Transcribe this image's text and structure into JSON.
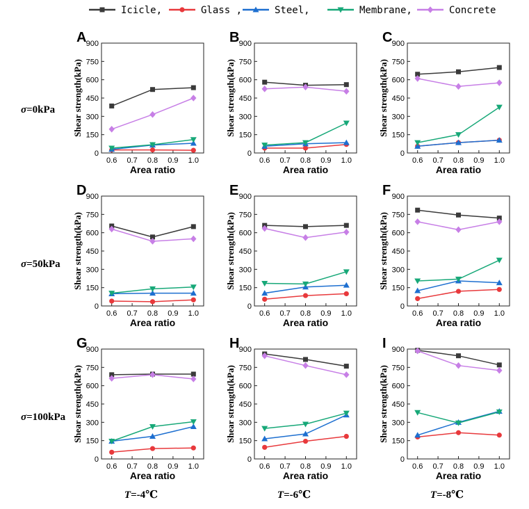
{
  "legend": {
    "items": [
      {
        "label": "Icicle,",
        "color": "#3a3a3a",
        "marker": "square"
      },
      {
        "label": "Glass ,",
        "color": "#e8393c",
        "marker": "circle"
      },
      {
        "label": "Steel,",
        "color": "#1d6fd0",
        "marker": "triangle-up"
      },
      {
        "label": "Membrane,",
        "color": "#17a878",
        "marker": "triangle-down"
      },
      {
        "label": "Concrete",
        "color": "#c77fe6",
        "marker": "diamond"
      }
    ]
  },
  "row_labels": [
    {
      "sym": "σ",
      "rest": "=0kPa"
    },
    {
      "sym": "σ",
      "rest": "=50kPa"
    },
    {
      "sym": "σ",
      "rest": "=100kPa"
    }
  ],
  "col_labels": [
    {
      "sym": "T",
      "rest": "=-4℃"
    },
    {
      "sym": "T",
      "rest": "=-6℃"
    },
    {
      "sym": "T",
      "rest": "=-8℃"
    }
  ],
  "chart_data": [
    {
      "type": "line",
      "panel": "A",
      "x": [
        0.6,
        0.8,
        1.0
      ],
      "xlabel": "Area ratio",
      "ylabel": "Shear strength(kPa)",
      "xlim": [
        0.55,
        1.05
      ],
      "ylim": [
        0,
        900
      ],
      "xticks": [
        "0.6",
        "0.7",
        "0.8",
        "0.9",
        "1.0"
      ],
      "yticks": [
        "0",
        "150",
        "300",
        "450",
        "600",
        "750",
        "900"
      ],
      "series": [
        {
          "name": "Icicle",
          "values": [
            385,
            520,
            535
          ]
        },
        {
          "name": "Glass",
          "values": [
            25,
            25,
            22
          ]
        },
        {
          "name": "Steel",
          "values": [
            30,
            65,
            80
          ]
        },
        {
          "name": "Membrane",
          "values": [
            40,
            68,
            110
          ]
        },
        {
          "name": "Concrete",
          "values": [
            195,
            315,
            450
          ]
        }
      ]
    },
    {
      "type": "line",
      "panel": "B",
      "x": [
        0.6,
        0.8,
        1.0
      ],
      "xlabel": "Area ratio",
      "ylabel": "Shear strength(kPa)",
      "xlim": [
        0.55,
        1.05
      ],
      "ylim": [
        0,
        900
      ],
      "xticks": [
        "0.6",
        "0.7",
        "0.8",
        "0.9",
        "1.0"
      ],
      "yticks": [
        "0",
        "150",
        "300",
        "450",
        "600",
        "750",
        "900"
      ],
      "series": [
        {
          "name": "Icicle",
          "values": [
            580,
            555,
            560
          ]
        },
        {
          "name": "Glass",
          "values": [
            40,
            40,
            70
          ]
        },
        {
          "name": "Steel",
          "values": [
            55,
            75,
            85
          ]
        },
        {
          "name": "Membrane",
          "values": [
            65,
            85,
            245
          ]
        },
        {
          "name": "Concrete",
          "values": [
            525,
            540,
            505
          ]
        }
      ]
    },
    {
      "type": "line",
      "panel": "C",
      "x": [
        0.6,
        0.8,
        1.0
      ],
      "xlabel": "Area ratio",
      "ylabel": "Shear strength(kPa)",
      "xlim": [
        0.55,
        1.05
      ],
      "ylim": [
        0,
        900
      ],
      "xticks": [
        "0.6",
        "0.7",
        "0.8",
        "0.9",
        "1.0"
      ],
      "yticks": [
        "0",
        "150",
        "300",
        "450",
        "600",
        "750",
        "900"
      ],
      "series": [
        {
          "name": "Icicle",
          "values": [
            645,
            665,
            700
          ]
        },
        {
          "name": "Glass",
          "values": [
            55,
            85,
            105
          ]
        },
        {
          "name": "Steel",
          "values": [
            55,
            85,
            105
          ]
        },
        {
          "name": "Membrane",
          "values": [
            85,
            150,
            375
          ]
        },
        {
          "name": "Concrete",
          "values": [
            610,
            545,
            575
          ]
        }
      ]
    },
    {
      "type": "line",
      "panel": "D",
      "x": [
        0.6,
        0.8,
        1.0
      ],
      "xlabel": "Area ratio",
      "ylabel": "Shear strength(kPa)",
      "xlim": [
        0.55,
        1.05
      ],
      "ylim": [
        0,
        900
      ],
      "xticks": [
        "0.6",
        "0.7",
        "0.8",
        "0.9",
        "1.0"
      ],
      "yticks": [
        "0",
        "150",
        "300",
        "450",
        "600",
        "750",
        "900"
      ],
      "series": [
        {
          "name": "Icicle",
          "values": [
            655,
            565,
            650
          ]
        },
        {
          "name": "Glass",
          "values": [
            40,
            35,
            50
          ]
        },
        {
          "name": "Steel",
          "values": [
            100,
            105,
            105
          ]
        },
        {
          "name": "Membrane",
          "values": [
            105,
            140,
            155
          ]
        },
        {
          "name": "Concrete",
          "values": [
            630,
            530,
            550
          ]
        }
      ]
    },
    {
      "type": "line",
      "panel": "E",
      "x": [
        0.6,
        0.8,
        1.0
      ],
      "xlabel": "Area ratio",
      "ylabel": "Shear strength(kPa)",
      "xlim": [
        0.55,
        1.05
      ],
      "ylim": [
        0,
        900
      ],
      "xticks": [
        "0.6",
        "0.7",
        "0.8",
        "0.9",
        "1.0"
      ],
      "yticks": [
        "0",
        "150",
        "300",
        "450",
        "600",
        "750",
        "900"
      ],
      "series": [
        {
          "name": "Icicle",
          "values": [
            660,
            650,
            660
          ]
        },
        {
          "name": "Glass",
          "values": [
            55,
            85,
            100
          ]
        },
        {
          "name": "Steel",
          "values": [
            105,
            155,
            170
          ]
        },
        {
          "name": "Membrane",
          "values": [
            185,
            180,
            280
          ]
        },
        {
          "name": "Concrete",
          "values": [
            635,
            560,
            605
          ]
        }
      ]
    },
    {
      "type": "line",
      "panel": "F",
      "x": [
        0.6,
        0.8,
        1.0
      ],
      "xlabel": "Area ratio",
      "ylabel": "Shear strength(kPa)",
      "xlim": [
        0.55,
        1.05
      ],
      "ylim": [
        0,
        900
      ],
      "xticks": [
        "0.6",
        "0.7",
        "0.8",
        "0.9",
        "1.0"
      ],
      "yticks": [
        "0",
        "150",
        "300",
        "450",
        "600",
        "750",
        "900"
      ],
      "series": [
        {
          "name": "Icicle",
          "values": [
            785,
            745,
            720
          ]
        },
        {
          "name": "Glass",
          "values": [
            60,
            120,
            135
          ]
        },
        {
          "name": "Steel",
          "values": [
            125,
            205,
            190
          ]
        },
        {
          "name": "Membrane",
          "values": [
            205,
            220,
            375
          ]
        },
        {
          "name": "Concrete",
          "values": [
            690,
            625,
            690
          ]
        }
      ]
    },
    {
      "type": "line",
      "panel": "G",
      "x": [
        0.6,
        0.8,
        1.0
      ],
      "xlabel": "Area ratio",
      "ylabel": "Shear strength(kPa)",
      "xlim": [
        0.55,
        1.05
      ],
      "ylim": [
        0,
        900
      ],
      "xticks": [
        "0.6",
        "0.7",
        "0.8",
        "0.9",
        "1.0"
      ],
      "yticks": [
        "0",
        "150",
        "300",
        "450",
        "600",
        "750",
        "900"
      ],
      "series": [
        {
          "name": "Icicle",
          "values": [
            690,
            695,
            695
          ]
        },
        {
          "name": "Glass",
          "values": [
            55,
            85,
            90
          ]
        },
        {
          "name": "Steel",
          "values": [
            145,
            185,
            265
          ]
        },
        {
          "name": "Membrane",
          "values": [
            145,
            265,
            305
          ]
        },
        {
          "name": "Concrete",
          "values": [
            660,
            690,
            655
          ]
        }
      ]
    },
    {
      "type": "line",
      "panel": "H",
      "x": [
        0.6,
        0.8,
        1.0
      ],
      "xlabel": "Area ratio",
      "ylabel": "Shear strength(kPa)",
      "xlim": [
        0.55,
        1.05
      ],
      "ylim": [
        0,
        900
      ],
      "xticks": [
        "0.6",
        "0.7",
        "0.8",
        "0.9",
        "1.0"
      ],
      "yticks": [
        "0",
        "150",
        "300",
        "450",
        "600",
        "750",
        "900"
      ],
      "series": [
        {
          "name": "Icicle",
          "values": [
            860,
            815,
            760
          ]
        },
        {
          "name": "Glass",
          "values": [
            95,
            145,
            185
          ]
        },
        {
          "name": "Steel",
          "values": [
            165,
            205,
            360
          ]
        },
        {
          "name": "Membrane",
          "values": [
            250,
            285,
            375
          ]
        },
        {
          "name": "Concrete",
          "values": [
            845,
            765,
            690
          ]
        }
      ]
    },
    {
      "type": "line",
      "panel": "I",
      "x": [
        0.6,
        0.8,
        1.0
      ],
      "xlabel": "Area ratio",
      "ylabel": "Shear strength(kPa)",
      "xlim": [
        0.55,
        1.05
      ],
      "ylim": [
        0,
        900
      ],
      "xticks": [
        "0.6",
        "0.7",
        "0.8",
        "0.9",
        "1.0"
      ],
      "yticks": [
        "0",
        "150",
        "300",
        "450",
        "600",
        "750",
        "900"
      ],
      "series": [
        {
          "name": "Icicle",
          "values": [
            890,
            845,
            770
          ]
        },
        {
          "name": "Glass",
          "values": [
            180,
            215,
            195
          ]
        },
        {
          "name": "Steel",
          "values": [
            195,
            300,
            390
          ]
        },
        {
          "name": "Membrane",
          "values": [
            380,
            295,
            385
          ]
        },
        {
          "name": "Concrete",
          "values": [
            885,
            765,
            725
          ]
        }
      ]
    }
  ]
}
